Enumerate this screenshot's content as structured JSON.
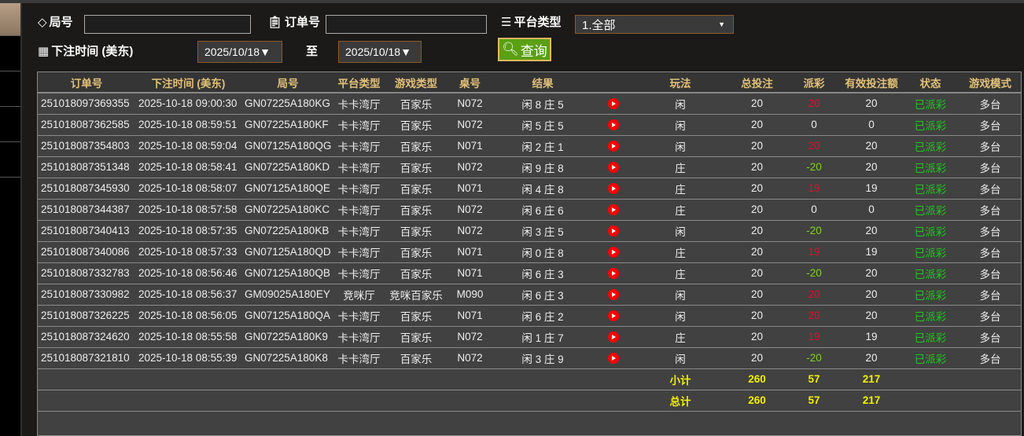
{
  "filters": {
    "round_label": "局号",
    "round_value": "",
    "order_label": "订单号",
    "order_value": "",
    "platform_label": "平台类型",
    "platform_value": "1.全部",
    "time_label": "下注时间 (美东)",
    "date_from": "2025/10/18▼",
    "to_label": "至",
    "date_to": "2025/10/18▼",
    "query_label": "查询"
  },
  "table": {
    "headers": [
      "订单号",
      "下注时间 (美东)",
      "局号",
      "平台类型",
      "游戏类型",
      "桌号",
      "结果",
      "",
      "玩法",
      "总投注",
      "派彩",
      "有效投注额",
      "状态",
      "游戏模式"
    ],
    "rows": [
      [
        "251018097369355",
        "2025-10-18 09:00:30",
        "GN07225A180KG",
        "卡卡湾厅",
        "百家乐",
        "N072",
        "闲 8 庄 5",
        "闲",
        "20",
        "20",
        "20",
        "已派彩",
        "多台"
      ],
      [
        "251018087362585",
        "2025-10-18 08:59:51",
        "GN07225A180KF",
        "卡卡湾厅",
        "百家乐",
        "N072",
        "闲 5 庄 5",
        "闲",
        "20",
        "0",
        "0",
        "已派彩",
        "多台"
      ],
      [
        "251018087354803",
        "2025-10-18 08:59:04",
        "GN07125A180QG",
        "卡卡湾厅",
        "百家乐",
        "N071",
        "闲 2 庄 1",
        "闲",
        "20",
        "20",
        "20",
        "已派彩",
        "多台"
      ],
      [
        "251018087351348",
        "2025-10-18 08:58:41",
        "GN07225A180KD",
        "卡卡湾厅",
        "百家乐",
        "N072",
        "闲 9 庄 8",
        "庄",
        "20",
        "-20",
        "20",
        "已派彩",
        "多台"
      ],
      [
        "251018087345930",
        "2025-10-18 08:58:07",
        "GN07125A180QE",
        "卡卡湾厅",
        "百家乐",
        "N071",
        "闲 4 庄 8",
        "庄",
        "20",
        "19",
        "19",
        "已派彩",
        "多台"
      ],
      [
        "251018087344387",
        "2025-10-18 08:57:58",
        "GN07225A180KC",
        "卡卡湾厅",
        "百家乐",
        "N072",
        "闲 6 庄 6",
        "庄",
        "20",
        "0",
        "0",
        "已派彩",
        "多台"
      ],
      [
        "251018087340413",
        "2025-10-18 08:57:35",
        "GN07225A180KB",
        "卡卡湾厅",
        "百家乐",
        "N072",
        "闲 3 庄 5",
        "闲",
        "20",
        "-20",
        "20",
        "已派彩",
        "多台"
      ],
      [
        "251018087340086",
        "2025-10-18 08:57:33",
        "GN07125A180QD",
        "卡卡湾厅",
        "百家乐",
        "N071",
        "闲 0 庄 8",
        "庄",
        "20",
        "19",
        "19",
        "已派彩",
        "多台"
      ],
      [
        "251018087332783",
        "2025-10-18 08:56:46",
        "GN07125A180QB",
        "卡卡湾厅",
        "百家乐",
        "N071",
        "闲 6 庄 3",
        "庄",
        "20",
        "-20",
        "20",
        "已派彩",
        "多台"
      ],
      [
        "251018087330982",
        "2025-10-18 08:56:37",
        "GM09025A180EY",
        "竞咪厅",
        "竞咪百家乐",
        "M090",
        "闲 6 庄 3",
        "闲",
        "20",
        "20",
        "20",
        "已派彩",
        "多台"
      ],
      [
        "251018087326225",
        "2025-10-18 08:56:05",
        "GN07125A180QA",
        "卡卡湾厅",
        "百家乐",
        "N071",
        "闲 6 庄 2",
        "闲",
        "20",
        "20",
        "20",
        "已派彩",
        "多台"
      ],
      [
        "251018087324620",
        "2025-10-18 08:55:58",
        "GN07225A180K9",
        "卡卡湾厅",
        "百家乐",
        "N072",
        "闲 1 庄 7",
        "庄",
        "20",
        "19",
        "19",
        "已派彩",
        "多台"
      ],
      [
        "251018087321810",
        "2025-10-18 08:55:39",
        "GN07225A180K8",
        "卡卡湾厅",
        "百家乐",
        "N072",
        "闲 3 庄 9",
        "闲",
        "20",
        "-20",
        "20",
        "已派彩",
        "多台"
      ]
    ],
    "subtotal": {
      "label": "小计",
      "total_bet": "260",
      "payout": "57",
      "valid_bet": "217"
    },
    "total": {
      "label": "总计",
      "total_bet": "260",
      "payout": "57",
      "valid_bet": "217"
    }
  },
  "colors": {
    "header_text": "#e2c178",
    "positive_payout": "#e0102a",
    "negative_payout": "#7ed321",
    "status": "#1ec81e",
    "totals": "#f2f000",
    "query_button": "#5aa012"
  }
}
